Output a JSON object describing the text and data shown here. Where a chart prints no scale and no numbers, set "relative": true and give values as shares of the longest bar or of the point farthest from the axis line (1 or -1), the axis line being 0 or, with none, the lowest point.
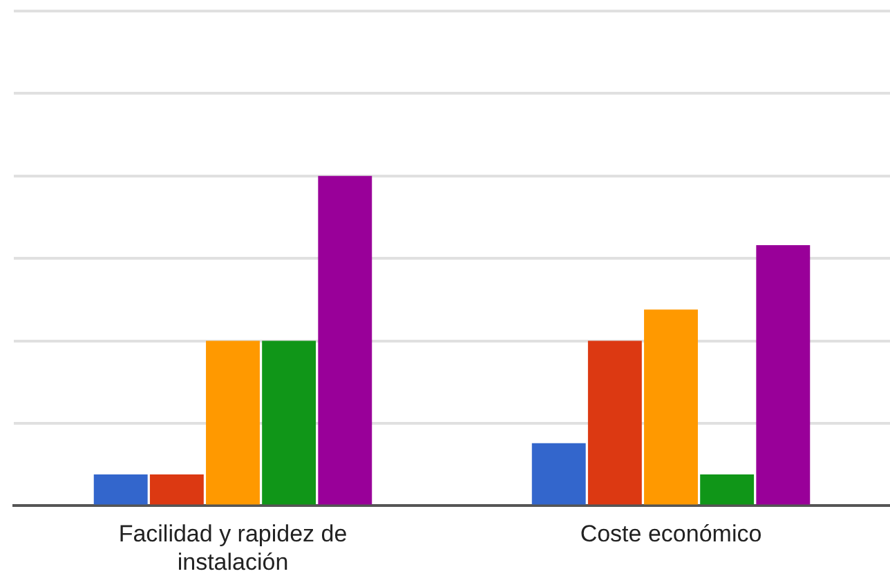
{
  "chart_data": {
    "type": "bar",
    "relative": true,
    "grid": "y",
    "legend": false,
    "categories": [
      "Facilidad y rapidez de instalación",
      "Coste económico"
    ],
    "series": [
      {
        "color": "#3366cc",
        "values": [
          0.095,
          0.19
        ]
      },
      {
        "color": "#dc3912",
        "values": [
          0.095,
          0.5
        ]
      },
      {
        "color": "#ff9900",
        "values": [
          0.5,
          0.595
        ]
      },
      {
        "color": "#109618",
        "values": [
          0.5,
          0.095
        ]
      },
      {
        "color": "#990099",
        "values": [
          1,
          0.79
        ]
      }
    ]
  }
}
